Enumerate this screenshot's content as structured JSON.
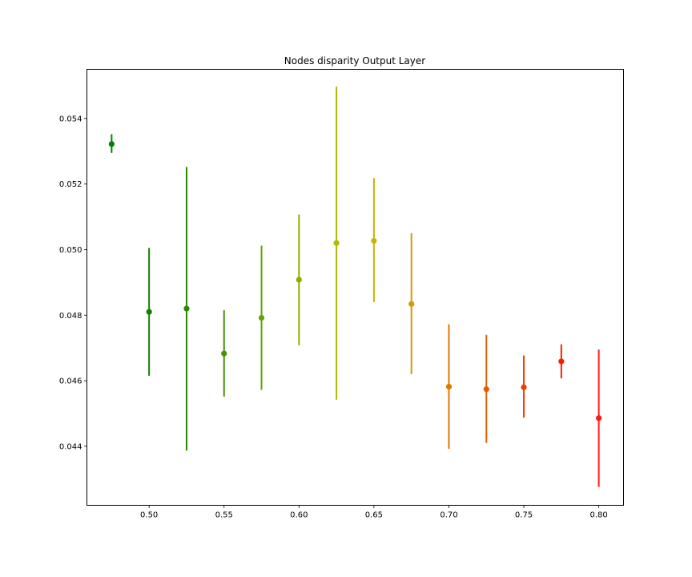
{
  "chart_data": {
    "type": "scatter",
    "title": "Nodes disparity Output Layer",
    "xlabel": "",
    "ylabel": "",
    "xlim": [
      0.4585,
      0.8165
    ],
    "ylim": [
      0.0422,
      0.0555
    ],
    "x_ticks": [
      "0.50",
      "0.55",
      "0.60",
      "0.65",
      "0.70",
      "0.75",
      "0.80"
    ],
    "y_ticks": [
      "0.044",
      "0.046",
      "0.048",
      "0.050",
      "0.052",
      "0.054"
    ],
    "grid": false,
    "points": [
      {
        "x": 0.475,
        "y": 0.05322,
        "low": 0.05295,
        "high": 0.05352,
        "color": "#008000"
      },
      {
        "x": 0.5,
        "y": 0.0481,
        "low": 0.04615,
        "high": 0.05005,
        "color": "#128000"
      },
      {
        "x": 0.525,
        "y": 0.0482,
        "low": 0.04387,
        "high": 0.05252,
        "color": "#2a8800"
      },
      {
        "x": 0.55,
        "y": 0.04683,
        "low": 0.04552,
        "high": 0.04815,
        "color": "#449600"
      },
      {
        "x": 0.575,
        "y": 0.04792,
        "low": 0.04572,
        "high": 0.05012,
        "color": "#62a400"
      },
      {
        "x": 0.6,
        "y": 0.04908,
        "low": 0.04708,
        "high": 0.05107,
        "color": "#8aae00"
      },
      {
        "x": 0.625,
        "y": 0.0502,
        "low": 0.04542,
        "high": 0.05497,
        "color": "#b0b800"
      },
      {
        "x": 0.65,
        "y": 0.05027,
        "low": 0.0484,
        "high": 0.05218,
        "color": "#c8b400"
      },
      {
        "x": 0.675,
        "y": 0.04834,
        "low": 0.0462,
        "high": 0.0505,
        "color": "#d89800"
      },
      {
        "x": 0.7,
        "y": 0.04582,
        "low": 0.04392,
        "high": 0.04772,
        "color": "#e07800"
      },
      {
        "x": 0.725,
        "y": 0.04574,
        "low": 0.0441,
        "high": 0.0474,
        "color": "#e85c00"
      },
      {
        "x": 0.75,
        "y": 0.0458,
        "low": 0.04487,
        "high": 0.04677,
        "color": "#ee3e00"
      },
      {
        "x": 0.775,
        "y": 0.04659,
        "low": 0.04607,
        "high": 0.04711,
        "color": "#f81e00"
      },
      {
        "x": 0.8,
        "y": 0.04486,
        "low": 0.04276,
        "high": 0.04695,
        "color": "#ff1a1a"
      }
    ]
  }
}
